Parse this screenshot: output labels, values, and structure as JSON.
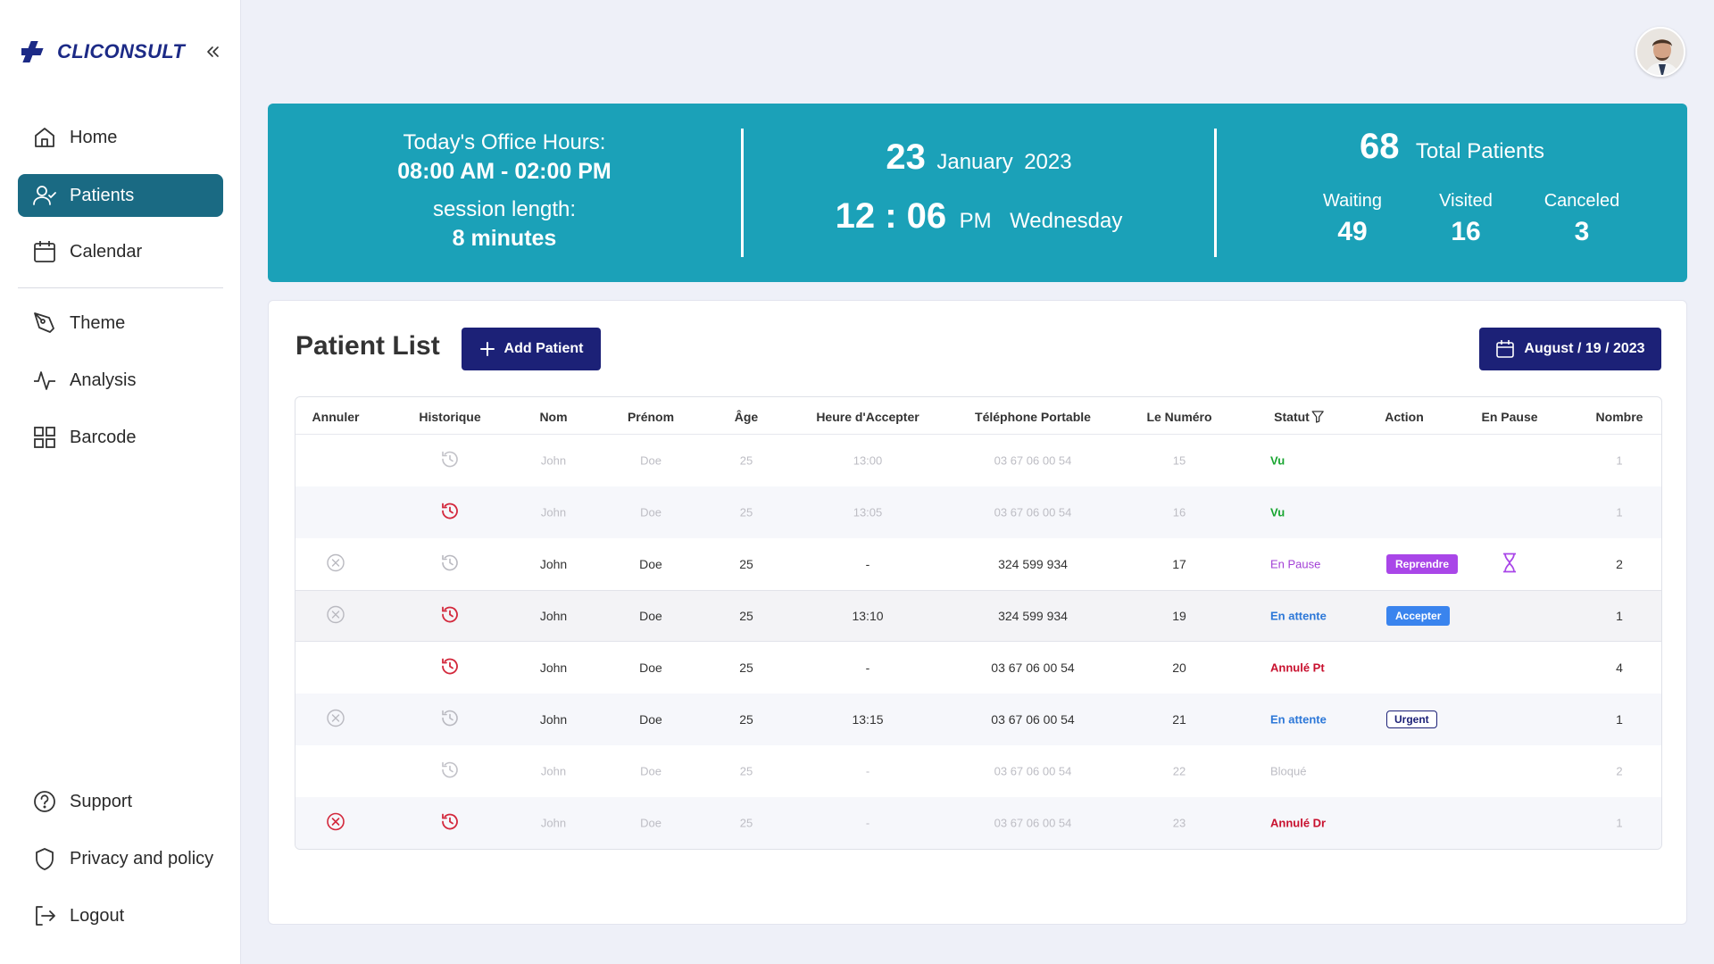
{
  "brand": {
    "name": "CLICONSULT",
    "accent": "#1c2a86"
  },
  "sidebar": {
    "items": [
      {
        "label": "Home",
        "icon": "home-icon"
      },
      {
        "label": "Patients",
        "icon": "user-check-icon",
        "active": true
      },
      {
        "label": "Calendar",
        "icon": "calendar-icon"
      },
      {
        "label": "Theme",
        "icon": "pen-tool-icon"
      },
      {
        "label": "Analysis",
        "icon": "activity-icon"
      },
      {
        "label": "Barcode",
        "icon": "grid-icon"
      }
    ],
    "bottom": [
      {
        "label": "Support",
        "icon": "help-circle-icon"
      },
      {
        "label": "Privacy and policy",
        "icon": "shield-icon"
      },
      {
        "label": "Logout",
        "icon": "logout-icon"
      }
    ]
  },
  "hero": {
    "office_hours_label": "Today's Office Hours:",
    "office_hours": "08:00 AM - 02:00 PM",
    "session_label": "session length:",
    "session_length": "8 minutes",
    "day": "23",
    "month": "January",
    "year": "2023",
    "time": "12 : 06",
    "ampm": "PM",
    "weekday": "Wednesday",
    "total": "68",
    "total_label": "Total Patients",
    "waiting_label": "Waiting",
    "waiting": "49",
    "visited_label": "Visited",
    "visited": "16",
    "canceled_label": "Canceled",
    "canceled": "3",
    "color": "#1ba1b8"
  },
  "patients": {
    "title": "Patient List",
    "add_label": "Add Patient",
    "date_label": "August / 19 / 2023",
    "columns": [
      "Annuler",
      "Historique",
      "Nom",
      "Prénom",
      "Âge",
      "Heure d'Accepter",
      "Téléphone Portable",
      "Le Numéro",
      "Statut",
      "Action",
      "En Pause",
      "Nombre"
    ],
    "rows": [
      {
        "nom": "John",
        "prenom": "Doe",
        "age": "25",
        "heure": "13:00",
        "tel": "03 67 06 00 54",
        "numero": "15",
        "statut": "Vu",
        "nombre": "1"
      },
      {
        "nom": "John",
        "prenom": "Doe",
        "age": "25",
        "heure": "13:05",
        "tel": "03 67 06 00 54",
        "numero": "16",
        "statut": "Vu",
        "nombre": "1"
      },
      {
        "nom": "John",
        "prenom": "Doe",
        "age": "25",
        "heure": "-",
        "tel": "324 599 934",
        "numero": "17",
        "statut": "En Pause",
        "action": "Reprendre",
        "nombre": "2"
      },
      {
        "nom": "John",
        "prenom": "Doe",
        "age": "25",
        "heure": "13:10",
        "tel": "324 599 934",
        "numero": "19",
        "statut": "En attente",
        "action": "Accepter",
        "nombre": "1"
      },
      {
        "nom": "John",
        "prenom": "Doe",
        "age": "25",
        "heure": "-",
        "tel": "03 67 06 00 54",
        "numero": "20",
        "statut": "Annulé Pt",
        "nombre": "4"
      },
      {
        "nom": "John",
        "prenom": "Doe",
        "age": "25",
        "heure": "13:15",
        "tel": "03 67 06 00 54",
        "numero": "21",
        "statut": "En attente",
        "action": "Urgent",
        "nombre": "1"
      },
      {
        "nom": "John",
        "prenom": "Doe",
        "age": "25",
        "heure": "-",
        "tel": "03 67 06 00 54",
        "numero": "22",
        "statut": "Bloqué",
        "nombre": "2"
      },
      {
        "nom": "John",
        "prenom": "Doe",
        "age": "25",
        "heure": "-",
        "tel": "03 67 06 00 54",
        "numero": "23",
        "statut": "Annulé Dr",
        "nombre": "1"
      }
    ]
  }
}
